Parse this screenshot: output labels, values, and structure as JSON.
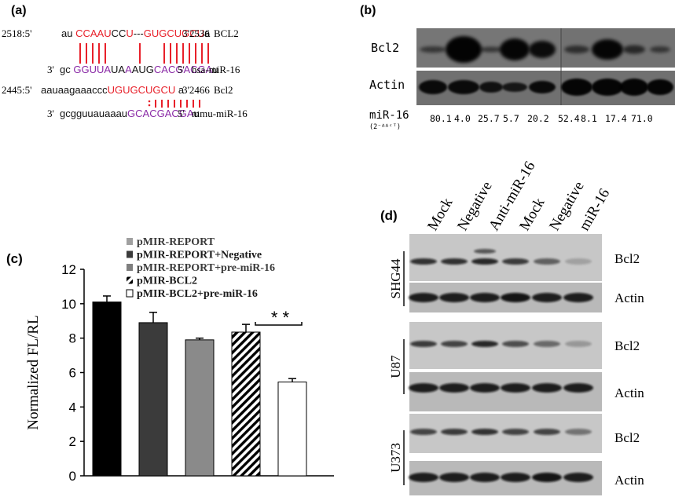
{
  "panels": {
    "a": {
      "label": "(a)",
      "rows": [
        {
          "id": "bcl2-human",
          "start": "2518:5'",
          "segments": [
            {
              "t": "au ",
              "c": "k"
            },
            {
              "t": "CCAAU",
              "c": "r"
            },
            {
              "t": "CC",
              "c": "k"
            },
            {
              "t": "U",
              "c": "r"
            },
            {
              "t": "---",
              "c": "k"
            },
            {
              "t": "GUGCUGCU",
              "c": "r"
            },
            {
              "t": "a",
              "c": "k"
            }
          ],
          "end": "3'2536",
          "name": "BCL2"
        },
        {
          "id": "hsa-mir16",
          "start": "3'",
          "segments": [
            {
              "t": "gc ",
              "c": "k"
            },
            {
              "t": "GGUUA",
              "c": "p"
            },
            {
              "t": "UA",
              "c": "k"
            },
            {
              "t": "A",
              "c": "p"
            },
            {
              "t": "AUG",
              "c": "k"
            },
            {
              "t": "CACGACGA",
              "c": "p"
            },
            {
              "t": "u",
              "c": "k"
            }
          ],
          "end": "5'",
          "name": "hsa-miR-16"
        },
        {
          "id": "bcl2-mouse",
          "start": "2445:5'",
          "segments": [
            {
              "t": "aauaagaaaccc",
              "c": "k"
            },
            {
              "t": "UGUGCUGCU",
              "c": "r"
            },
            {
              "t": " a",
              "c": "k"
            }
          ],
          "end": "3'2466",
          "name": "Bcl2"
        },
        {
          "id": "mmu-mir16",
          "start": "3'",
          "segments": [
            {
              "t": "gcgguuauaaau",
              "c": "k"
            },
            {
              "t": "GCACGACGA",
              "c": "p"
            },
            {
              "t": "u",
              "c": "k"
            }
          ],
          "end": "5'",
          "name": "mmu-miR-16"
        }
      ],
      "colors": {
        "k": "#111111",
        "r": "#e8202a",
        "p": "#8a2aa6"
      }
    },
    "b": {
      "label": "(b)",
      "row_labels": [
        "Bcl2",
        "Actin"
      ],
      "mir_label": "miR-16",
      "mir_formula": "(2⁻ᐞᐞᶜᵀ)",
      "mir_values": [
        "80.1",
        "4.0",
        "25.7",
        "5.7",
        "20.2",
        "52.4",
        "8.1",
        "17.4",
        "71.0"
      ]
    },
    "c": {
      "label": "(c)",
      "significance": "* *",
      "chart_data": {
        "type": "bar",
        "categories": [
          "pMIR-REPORT",
          "pMIR-REPORT+Negative",
          "pMIR-REPORT+pre-miR-16",
          "pMIR-BCL2",
          "pMIR-BCL2+pre-miR-16"
        ],
        "values": [
          10.1,
          8.9,
          7.9,
          8.35,
          5.45
        ],
        "errors": [
          0.35,
          0.6,
          0.1,
          0.45,
          0.2
        ],
        "colors": [
          "#000000",
          "#3b3b3b",
          "#8a8a8a",
          "hatch",
          "#ffffff"
        ],
        "ylabel": "Normalized FL/RL",
        "ylim": [
          0,
          12
        ],
        "yticks": [
          "0",
          "2",
          "4",
          "6",
          "8",
          "10",
          "12"
        ],
        "legend_position": "top"
      }
    },
    "d": {
      "label": "(d)",
      "lanes": [
        "Mock",
        "Negative",
        "Anti-miR-16",
        "Mock",
        "Negative",
        "miR-16"
      ],
      "cell_lines": [
        {
          "name": "SHG44",
          "rows": [
            "Bcl2",
            "Actin"
          ]
        },
        {
          "name": "U87",
          "rows": [
            "Bcl2",
            "Actin"
          ]
        },
        {
          "name": "U373",
          "rows": [
            "Bcl2",
            "Actin"
          ]
        }
      ]
    }
  }
}
